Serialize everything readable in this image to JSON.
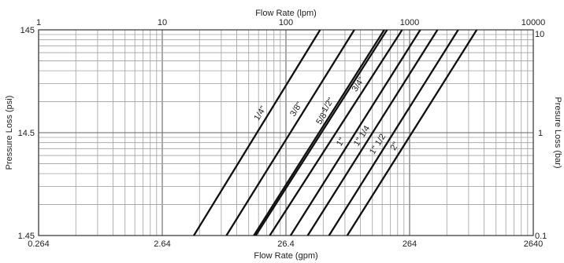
{
  "chart_data": {
    "type": "line",
    "title": "",
    "top_axis": {
      "label": "Flow Rate (lpm)",
      "scale": "log",
      "range": [
        1,
        10000
      ],
      "ticks": [
        "1",
        "10",
        "100",
        "1000",
        "10000"
      ]
    },
    "bottom_axis": {
      "label": "Flow Rate (gpm)",
      "scale": "log",
      "range": [
        0.264,
        2640
      ],
      "ticks": [
        "0.264",
        "2.64",
        "26.4",
        "264",
        "2640"
      ]
    },
    "left_axis": {
      "label": "Pressure Loss (psi)",
      "scale": "log",
      "range": [
        1.45,
        145
      ],
      "ticks": [
        "1.45",
        "14.5",
        "145"
      ]
    },
    "right_axis": {
      "label": "Presure Loss (bar)",
      "scale": "log",
      "range": [
        0.1,
        10
      ],
      "ticks": [
        "0.1",
        "1",
        "10"
      ]
    },
    "grid": true,
    "x_units": "lpm",
    "y_units": "bar",
    "series": [
      {
        "name": "1/4\"",
        "x": [
          18.0,
          189.0
        ],
        "y": [
          0.1,
          10
        ]
      },
      {
        "name": "3/8\"",
        "x": [
          33.0,
          357.0
        ],
        "y": [
          0.1,
          10
        ]
      },
      {
        "name": "1/2\"",
        "x": [
          55.0,
          624.0
        ],
        "y": [
          0.1,
          10
        ]
      },
      {
        "name": "5/8\"",
        "x": [
          57.0,
          657.0
        ],
        "y": [
          0.1,
          10
        ]
      },
      {
        "name": "3/4\"",
        "x": [
          74.0,
          870.0
        ],
        "y": [
          0.1,
          10
        ]
      },
      {
        "name": "1\"",
        "x": [
          109.0,
          1220.0
        ],
        "y": [
          0.1,
          10
        ]
      },
      {
        "name": "1\" 1/4",
        "x": [
          150.0,
          1680.0
        ],
        "y": [
          0.1,
          10
        ]
      },
      {
        "name": "1\" 1/2",
        "x": [
          223.0,
          2470.0
        ],
        "y": [
          0.1,
          10
        ]
      },
      {
        "name": "2\"",
        "x": [
          313.0,
          3490.0
        ],
        "y": [
          0.1,
          10
        ]
      }
    ]
  }
}
